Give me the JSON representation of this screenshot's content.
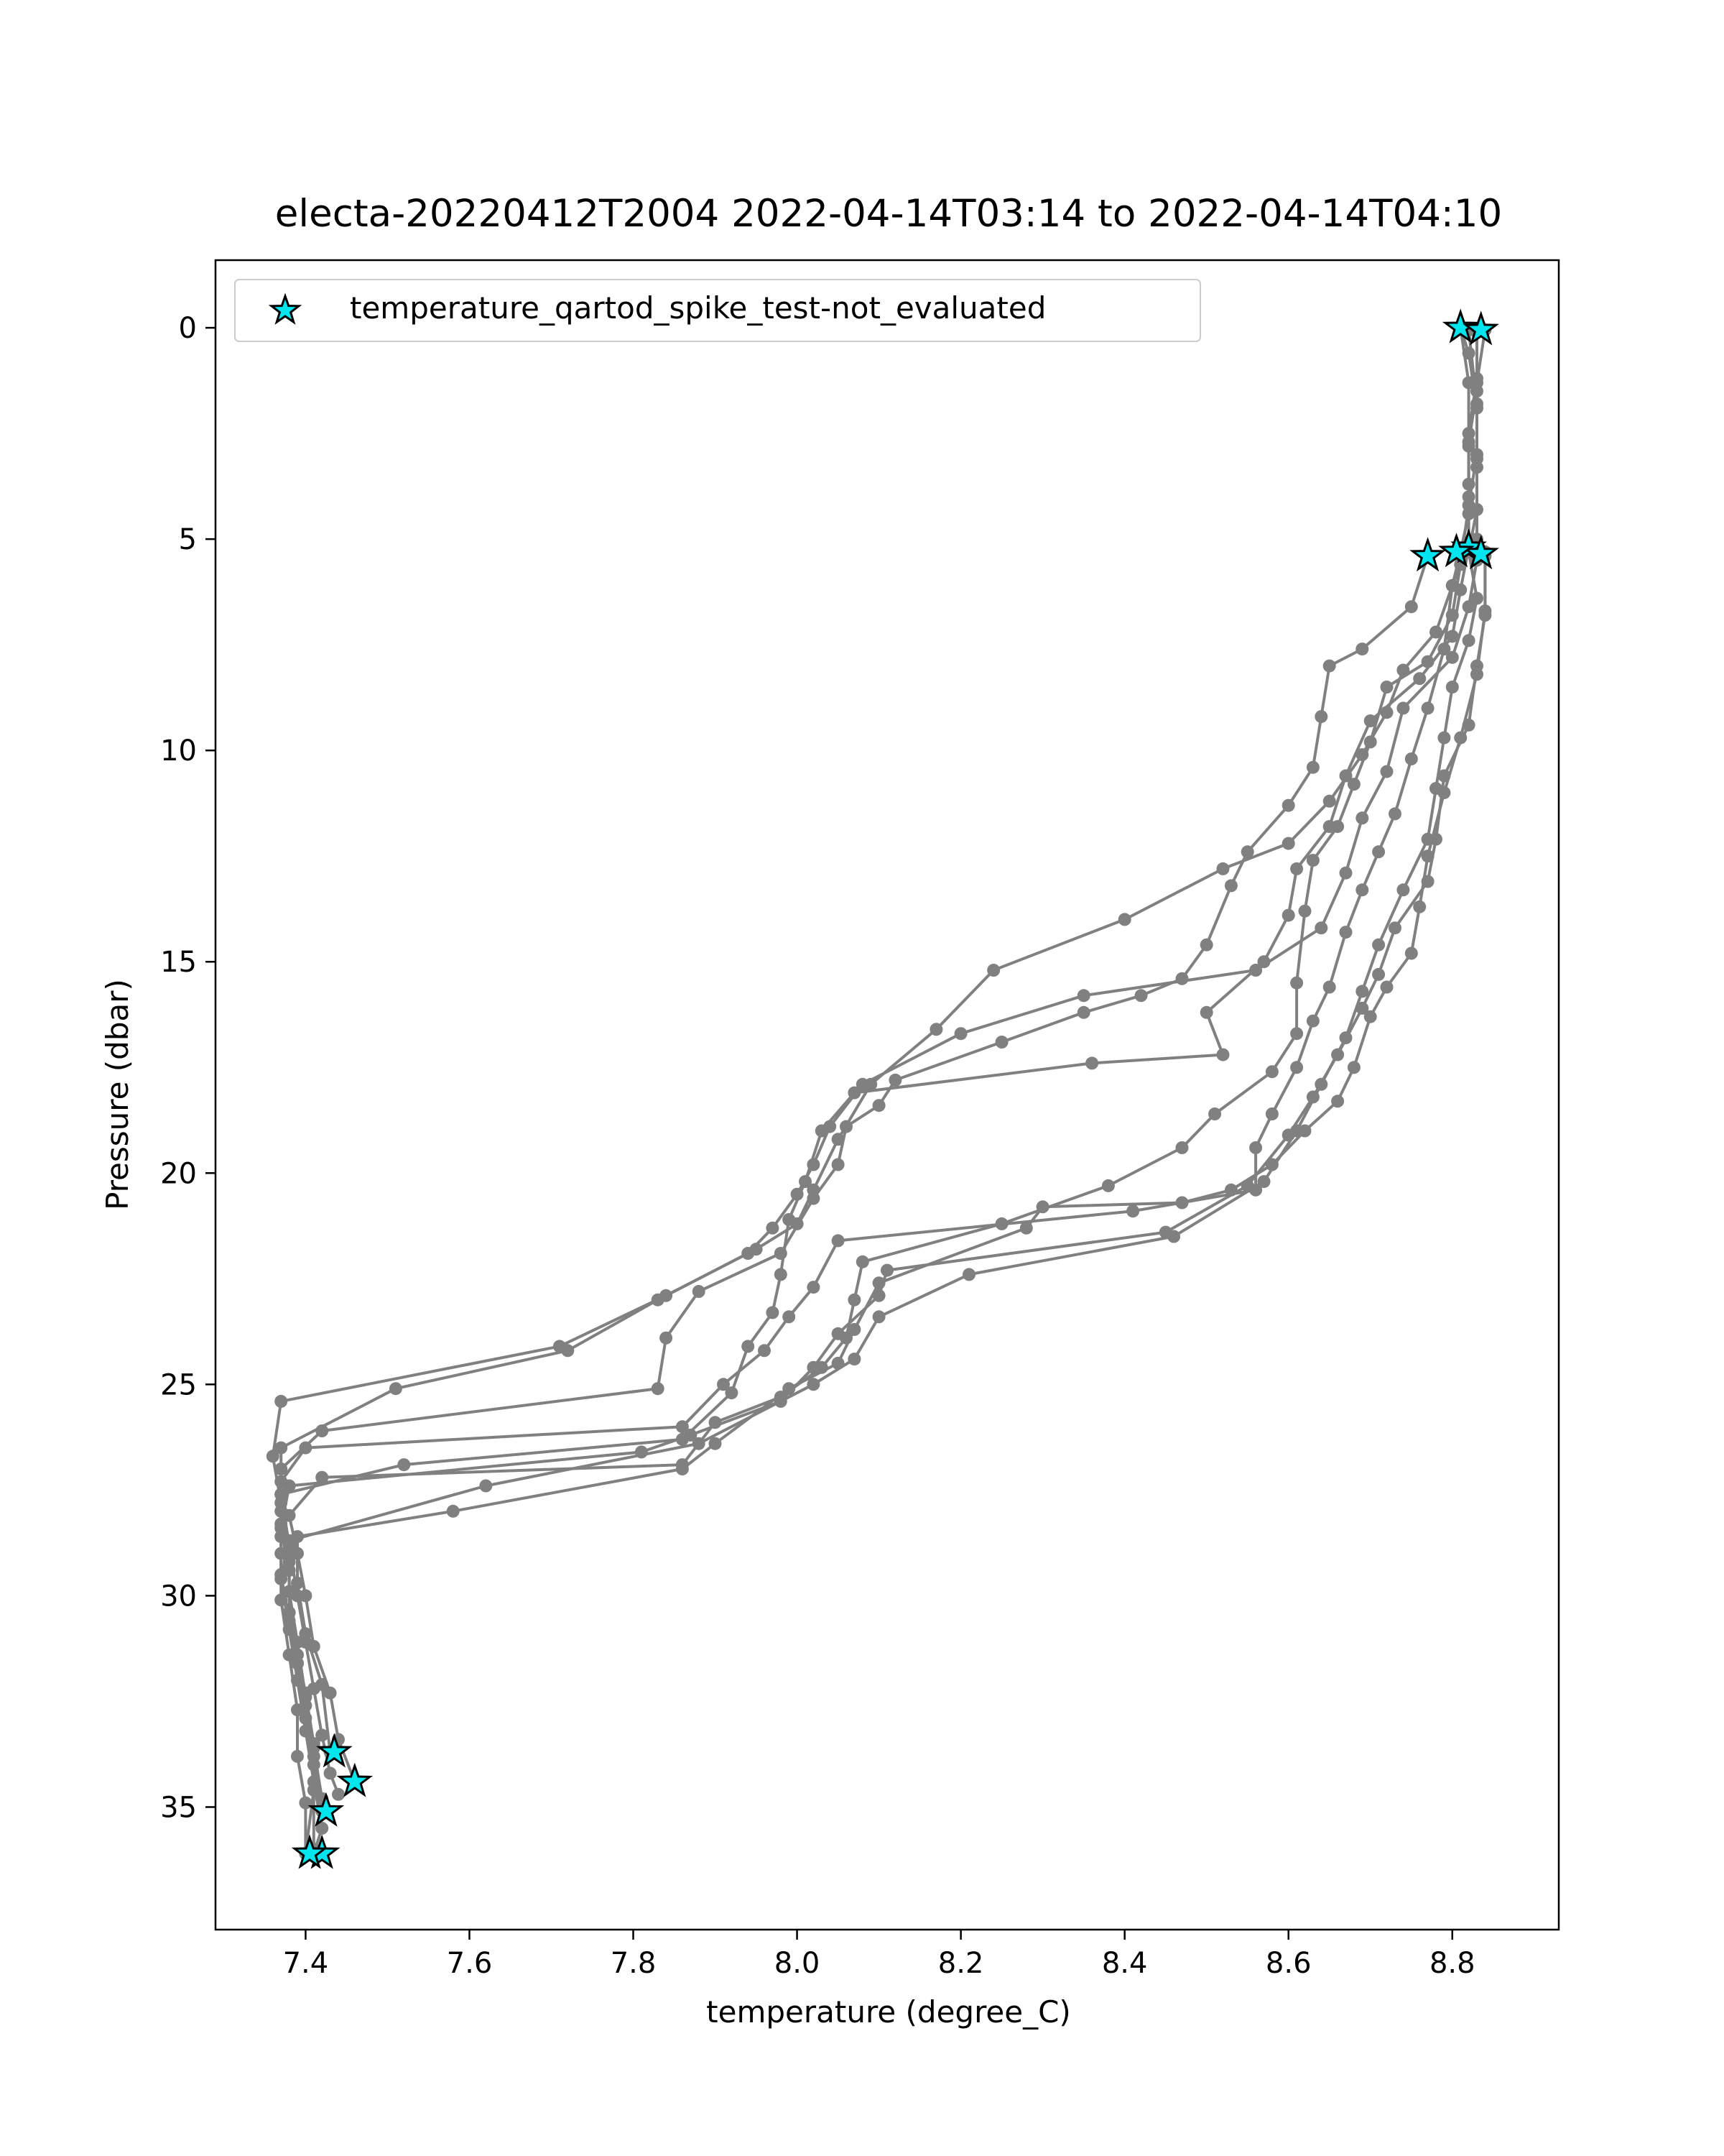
{
  "chart_data": {
    "type": "line",
    "title": "electa-20220412T2004 2022-04-14T03:14 to 2022-04-14T04:10",
    "xlabel": "temperature (degree_C)",
    "ylabel": "Pressure (dbar)",
    "xlim": [
      7.29,
      8.93
    ],
    "ylim": [
      37.9,
      -1.6
    ],
    "y_inverted": true,
    "grid": false,
    "xticks": [
      7.4,
      7.6,
      7.8,
      8.0,
      8.2,
      8.4,
      8.6,
      8.8
    ],
    "xtick_labels": [
      "7.4",
      "7.6",
      "7.8",
      "8.0",
      "8.2",
      "8.4",
      "8.6",
      "8.8"
    ],
    "yticks": [
      0,
      5,
      10,
      15,
      20,
      25,
      30,
      35
    ],
    "ytick_labels": [
      "0",
      "5",
      "10",
      "15",
      "20",
      "25",
      "30",
      "35"
    ],
    "legend": {
      "position": "top-left",
      "entries": [
        {
          "label": "temperature_qartod_spike_test-not_evaluated",
          "marker": "star",
          "color": "#00e5ee"
        }
      ]
    },
    "colors": {
      "profile_line": "#808080",
      "spike_marker": "#00e5ee",
      "marker_edge": "#000000"
    },
    "series": [
      {
        "points": [
          [
            8.81,
            0.0
          ],
          [
            8.82,
            0.6
          ],
          [
            8.83,
            1.9
          ],
          [
            8.83,
            3.1
          ],
          [
            8.83,
            4.3
          ],
          [
            8.82,
            5.3
          ],
          [
            8.83,
            6.4
          ],
          [
            8.82,
            7.4
          ],
          [
            8.8,
            8.5
          ],
          [
            8.79,
            9.7
          ],
          [
            8.78,
            10.9
          ],
          [
            8.77,
            12.1
          ],
          [
            8.74,
            13.3
          ],
          [
            8.71,
            14.6
          ],
          [
            8.69,
            15.7
          ],
          [
            8.67,
            16.8
          ],
          [
            8.64,
            17.9
          ],
          [
            8.61,
            19.0
          ],
          [
            8.57,
            20.2
          ],
          [
            8.46,
            21.5
          ],
          [
            8.21,
            22.4
          ],
          [
            8.1,
            23.4
          ],
          [
            8.07,
            24.4
          ],
          [
            8.02,
            25.0
          ],
          [
            7.88,
            26.4
          ],
          [
            7.62,
            27.4
          ],
          [
            7.38,
            28.7
          ],
          [
            7.37,
            29.6
          ],
          [
            7.38,
            30.8
          ],
          [
            7.39,
            32.0
          ],
          [
            7.4,
            33.2
          ],
          [
            7.41,
            34.4
          ],
          [
            7.42,
            35.5
          ],
          [
            7.41,
            36.1
          ]
        ]
      },
      {
        "points": [
          [
            8.83,
            0.05
          ],
          [
            8.83,
            1.2
          ],
          [
            8.82,
            2.5
          ],
          [
            8.82,
            3.7
          ],
          [
            8.82,
            5.2
          ],
          [
            8.81,
            6.2
          ],
          [
            8.8,
            7.3
          ],
          [
            8.76,
            8.3
          ],
          [
            8.7,
            9.3
          ],
          [
            8.67,
            10.6
          ],
          [
            8.65,
            11.8
          ],
          [
            8.61,
            12.8
          ],
          [
            8.6,
            13.9
          ],
          [
            8.57,
            15.0
          ],
          [
            8.5,
            16.2
          ],
          [
            8.52,
            17.2
          ],
          [
            8.36,
            17.4
          ],
          [
            8.07,
            18.1
          ],
          [
            8.03,
            19.0
          ],
          [
            8.01,
            20.2
          ],
          [
            7.99,
            21.1
          ],
          [
            7.98,
            22.4
          ],
          [
            7.97,
            23.3
          ],
          [
            7.94,
            24.1
          ],
          [
            7.92,
            25.2
          ],
          [
            7.86,
            26.3
          ],
          [
            7.52,
            26.9
          ],
          [
            7.37,
            27.6
          ],
          [
            7.37,
            28.6
          ],
          [
            7.37,
            29.5
          ],
          [
            7.38,
            30.6
          ],
          [
            7.39,
            31.6
          ],
          [
            7.4,
            32.6
          ],
          [
            7.41,
            33.8
          ],
          [
            7.42,
            35.1
          ]
        ]
      },
      {
        "points": [
          [
            8.81,
            0.0
          ],
          [
            8.82,
            1.3
          ],
          [
            8.82,
            2.8
          ],
          [
            8.82,
            4.4
          ],
          [
            8.81,
            5.3
          ],
          [
            8.8,
            6.1
          ],
          [
            8.79,
            7.6
          ],
          [
            8.77,
            9.0
          ],
          [
            8.75,
            10.2
          ],
          [
            8.73,
            11.5
          ],
          [
            8.71,
            12.4
          ],
          [
            8.69,
            13.3
          ],
          [
            8.67,
            14.3
          ],
          [
            8.65,
            15.6
          ],
          [
            8.63,
            16.4
          ],
          [
            8.61,
            17.5
          ],
          [
            8.58,
            18.6
          ],
          [
            8.56,
            19.4
          ],
          [
            8.56,
            20.4
          ],
          [
            8.41,
            20.9
          ],
          [
            8.05,
            21.6
          ],
          [
            8.02,
            22.7
          ],
          [
            7.99,
            23.4
          ],
          [
            7.96,
            24.2
          ],
          [
            7.91,
            25.0
          ],
          [
            7.86,
            26.0
          ],
          [
            7.4,
            26.5
          ],
          [
            7.37,
            27.3
          ],
          [
            7.37,
            28.3
          ],
          [
            7.38,
            29.2
          ],
          [
            7.38,
            30.4
          ],
          [
            7.39,
            31.4
          ],
          [
            7.4,
            32.3
          ],
          [
            7.41,
            33.5
          ],
          [
            7.41,
            34.6
          ],
          [
            7.4,
            36.1
          ]
        ]
      },
      {
        "points": [
          [
            8.82,
            0.05
          ],
          [
            8.83,
            1.8
          ],
          [
            8.83,
            3.0
          ],
          [
            8.82,
            4.2
          ],
          [
            8.81,
            5.6
          ],
          [
            8.8,
            6.8
          ],
          [
            8.77,
            7.9
          ],
          [
            8.72,
            8.5
          ],
          [
            8.7,
            9.8
          ],
          [
            8.68,
            10.8
          ],
          [
            8.66,
            11.8
          ],
          [
            8.63,
            12.6
          ],
          [
            8.62,
            13.8
          ],
          [
            8.61,
            15.5
          ],
          [
            8.61,
            16.7
          ],
          [
            8.58,
            17.6
          ],
          [
            8.51,
            18.6
          ],
          [
            8.47,
            19.4
          ],
          [
            8.38,
            20.3
          ],
          [
            8.25,
            21.2
          ],
          [
            8.08,
            22.1
          ],
          [
            8.07,
            23.0
          ],
          [
            8.06,
            23.9
          ],
          [
            8.03,
            24.6
          ],
          [
            7.98,
            25.3
          ],
          [
            7.9,
            25.9
          ],
          [
            7.86,
            26.9
          ],
          [
            7.42,
            27.2
          ],
          [
            7.38,
            28.1
          ],
          [
            7.39,
            29.0
          ],
          [
            7.4,
            30.0
          ],
          [
            7.41,
            31.2
          ],
          [
            7.43,
            32.3
          ],
          [
            7.44,
            33.4
          ],
          [
            7.46,
            34.4
          ]
        ]
      },
      {
        "points": [
          [
            8.83,
            0.1
          ],
          [
            8.83,
            1.5
          ],
          [
            8.82,
            2.7
          ],
          [
            8.82,
            4.0
          ],
          [
            8.82,
            5.1
          ],
          [
            8.83,
            5.5
          ],
          [
            8.82,
            6.6
          ],
          [
            8.8,
            7.8
          ],
          [
            8.74,
            9.0
          ],
          [
            8.72,
            10.5
          ],
          [
            8.69,
            11.6
          ],
          [
            8.67,
            12.9
          ],
          [
            8.64,
            14.2
          ],
          [
            8.56,
            15.2
          ],
          [
            8.35,
            15.8
          ],
          [
            8.2,
            16.7
          ],
          [
            8.08,
            17.9
          ],
          [
            8.04,
            18.9
          ],
          [
            8.02,
            19.8
          ],
          [
            8.0,
            20.5
          ],
          [
            7.97,
            21.3
          ],
          [
            7.94,
            21.9
          ],
          [
            7.83,
            23.0
          ],
          [
            7.72,
            24.2
          ],
          [
            7.51,
            25.1
          ],
          [
            7.37,
            26.5
          ],
          [
            7.37,
            27.6
          ],
          [
            7.38,
            28.8
          ],
          [
            7.39,
            30.0
          ],
          [
            7.4,
            31.1
          ],
          [
            7.41,
            32.2
          ],
          [
            7.42,
            33.3
          ],
          [
            7.43,
            34.2
          ],
          [
            7.44,
            34.7
          ]
        ]
      },
      {
        "points": [
          [
            8.84,
            0.05
          ],
          [
            8.83,
            1.3
          ],
          [
            8.83,
            3.3
          ],
          [
            8.83,
            5.0
          ],
          [
            8.84,
            5.4
          ],
          [
            8.84,
            6.8
          ],
          [
            8.83,
            8.0
          ],
          [
            8.82,
            9.4
          ],
          [
            8.79,
            10.6
          ],
          [
            8.78,
            12.1
          ],
          [
            8.77,
            13.1
          ],
          [
            8.73,
            14.2
          ],
          [
            8.71,
            15.3
          ],
          [
            8.69,
            16.1
          ],
          [
            8.66,
            17.2
          ],
          [
            8.63,
            18.2
          ],
          [
            8.6,
            19.1
          ],
          [
            8.55,
            20.3
          ],
          [
            8.45,
            21.4
          ],
          [
            8.11,
            22.3
          ],
          [
            8.1,
            22.9
          ],
          [
            8.05,
            23.8
          ],
          [
            8.02,
            24.6
          ],
          [
            7.98,
            25.4
          ],
          [
            7.87,
            26.2
          ],
          [
            7.81,
            26.6
          ],
          [
            7.38,
            27.4
          ],
          [
            7.37,
            28.4
          ],
          [
            7.38,
            29.4
          ],
          [
            7.38,
            30.4
          ],
          [
            7.39,
            31.6
          ],
          [
            7.4,
            32.9
          ],
          [
            7.41,
            34.0
          ],
          [
            7.41,
            36.0
          ]
        ]
      },
      {
        "points": [
          [
            8.77,
            5.4
          ],
          [
            8.75,
            6.6
          ],
          [
            8.69,
            7.6
          ],
          [
            8.65,
            8.0
          ],
          [
            8.64,
            9.2
          ],
          [
            8.63,
            10.4
          ],
          [
            8.6,
            11.3
          ],
          [
            8.55,
            12.4
          ],
          [
            8.53,
            13.2
          ],
          [
            8.5,
            14.6
          ],
          [
            8.47,
            15.4
          ],
          [
            8.42,
            15.8
          ],
          [
            8.35,
            16.2
          ],
          [
            8.25,
            16.9
          ],
          [
            8.12,
            17.8
          ],
          [
            8.1,
            18.4
          ],
          [
            8.06,
            18.9
          ],
          [
            8.05,
            19.8
          ],
          [
            8.02,
            20.6
          ],
          [
            7.98,
            21.9
          ],
          [
            7.88,
            22.8
          ],
          [
            7.84,
            23.9
          ],
          [
            7.83,
            25.1
          ],
          [
            7.42,
            26.1
          ],
          [
            7.37,
            27.0
          ],
          [
            7.37,
            28.0
          ],
          [
            7.38,
            28.9
          ],
          [
            7.38,
            29.9
          ],
          [
            7.39,
            31.1
          ],
          [
            7.4,
            32.4
          ],
          [
            7.41,
            33.6
          ],
          [
            7.42,
            34.8
          ]
        ]
      },
      {
        "points": [
          [
            8.82,
            5.2
          ],
          [
            8.8,
            6.1
          ],
          [
            8.78,
            7.2
          ],
          [
            8.74,
            8.1
          ],
          [
            8.72,
            9.1
          ],
          [
            8.69,
            10.1
          ],
          [
            8.65,
            11.2
          ],
          [
            8.6,
            12.2
          ],
          [
            8.52,
            12.8
          ],
          [
            8.4,
            14.0
          ],
          [
            8.24,
            15.2
          ],
          [
            8.17,
            16.6
          ],
          [
            8.09,
            17.9
          ],
          [
            8.05,
            19.2
          ],
          [
            8.02,
            20.4
          ],
          [
            8.0,
            21.2
          ],
          [
            7.95,
            21.8
          ],
          [
            7.84,
            22.9
          ],
          [
            7.71,
            24.1
          ],
          [
            7.37,
            25.4
          ],
          [
            7.36,
            26.7
          ],
          [
            7.37,
            27.8
          ],
          [
            7.37,
            29.0
          ],
          [
            7.37,
            30.1
          ],
          [
            7.38,
            31.4
          ],
          [
            7.39,
            32.7
          ],
          [
            7.39,
            33.8
          ],
          [
            7.4,
            34.9
          ],
          [
            7.4,
            36.1
          ]
        ]
      },
      {
        "points": [
          [
            8.84,
            5.3
          ],
          [
            8.84,
            6.7
          ],
          [
            8.83,
            8.2
          ],
          [
            8.81,
            9.7
          ],
          [
            8.79,
            11.0
          ],
          [
            8.77,
            12.5
          ],
          [
            8.76,
            13.7
          ],
          [
            8.75,
            14.8
          ],
          [
            8.72,
            15.6
          ],
          [
            8.7,
            16.3
          ],
          [
            8.68,
            17.5
          ],
          [
            8.66,
            18.3
          ],
          [
            8.62,
            19.0
          ],
          [
            8.58,
            19.8
          ],
          [
            8.53,
            20.4
          ],
          [
            8.47,
            20.7
          ],
          [
            8.3,
            20.8
          ],
          [
            8.28,
            21.3
          ],
          [
            8.1,
            22.6
          ],
          [
            8.07,
            23.7
          ],
          [
            8.05,
            24.5
          ],
          [
            7.99,
            25.1
          ],
          [
            7.9,
            26.4
          ],
          [
            7.86,
            27.0
          ],
          [
            7.58,
            28.0
          ],
          [
            7.39,
            28.6
          ],
          [
            7.39,
            29.7
          ],
          [
            7.4,
            30.9
          ],
          [
            7.42,
            32.1
          ],
          [
            7.43,
            33.7
          ]
        ]
      }
    ],
    "spike_not_evaluated_points": [
      [
        8.81,
        0.0
      ],
      [
        8.835,
        0.05
      ],
      [
        7.42,
        36.1
      ],
      [
        8.82,
        5.2
      ],
      [
        7.425,
        35.1
      ],
      [
        7.46,
        34.4
      ],
      [
        7.435,
        33.7
      ],
      [
        8.835,
        5.35
      ],
      [
        7.405,
        36.1
      ],
      [
        8.805,
        5.3
      ],
      [
        8.77,
        5.4
      ]
    ]
  }
}
